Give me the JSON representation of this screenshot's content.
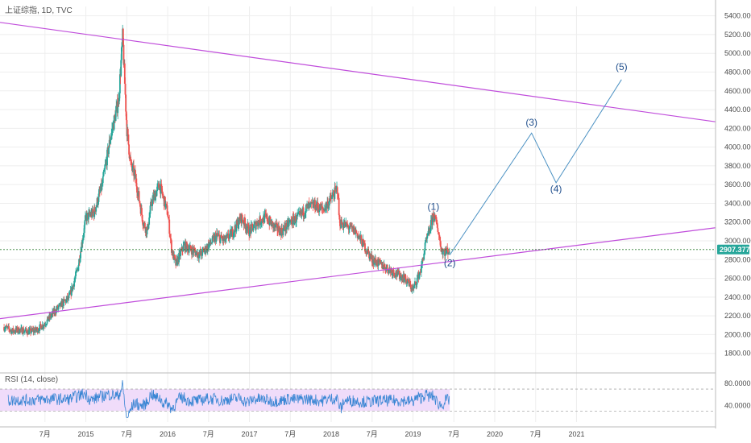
{
  "header": {
    "title": "上证综指, 1D, TVC"
  },
  "rsi": {
    "label": "RSI (14, close)",
    "y_ticks": [
      "80.0000",
      "40.0000"
    ],
    "upper_band": 70,
    "lower_band": 30,
    "ylim": [
      10,
      95
    ]
  },
  "price_label": "2907.377",
  "colors": {
    "price_line": "#2e7d32",
    "up": "#26a69a",
    "down": "#ef5350",
    "trendline": "#c04ddb",
    "projection": "#4a90c2",
    "rsi_line": "#3a86d4",
    "rsi_band": "#f0dcfa",
    "price_badge": "#26a69a"
  },
  "chart_data": {
    "type": "line",
    "title": "上证综指, 1D, TVC",
    "ylim": [
      1600,
      5500
    ],
    "y_ticks": [
      1800,
      2000,
      2200,
      2400,
      2600,
      2800,
      3000,
      3200,
      3400,
      3600,
      3800,
      4000,
      4200,
      4400,
      4600,
      4800,
      5000,
      5200,
      5400
    ],
    "x_ticks": [
      {
        "label": "7月",
        "t": 2014.5
      },
      {
        "label": "2015",
        "t": 2015.0
      },
      {
        "label": "7月",
        "t": 2015.5
      },
      {
        "label": "2016",
        "t": 2016.0
      },
      {
        "label": "7月",
        "t": 2016.5
      },
      {
        "label": "2017",
        "t": 2017.0
      },
      {
        "label": "7月",
        "t": 2017.5
      },
      {
        "label": "2018",
        "t": 2018.0
      },
      {
        "label": "7月",
        "t": 2018.5
      },
      {
        "label": "2019",
        "t": 2019.0
      },
      {
        "label": "7月",
        "t": 2019.5
      },
      {
        "label": "2020",
        "t": 2020.0
      },
      {
        "label": "7月",
        "t": 2020.5
      },
      {
        "label": "2021",
        "t": 2021.0
      }
    ],
    "series": [
      {
        "points": [
          [
            2014.0,
            2080
          ],
          [
            2014.1,
            2040
          ],
          [
            2014.2,
            2050
          ],
          [
            2014.3,
            2030
          ],
          [
            2014.4,
            2050
          ],
          [
            2014.5,
            2120
          ],
          [
            2014.6,
            2230
          ],
          [
            2014.7,
            2320
          ],
          [
            2014.8,
            2400
          ],
          [
            2014.9,
            2700
          ],
          [
            2015.0,
            3250
          ],
          [
            2015.1,
            3300
          ],
          [
            2015.2,
            3600
          ],
          [
            2015.3,
            4100
          ],
          [
            2015.4,
            4500
          ],
          [
            2015.45,
            5178
          ],
          [
            2015.5,
            4200
          ],
          [
            2015.55,
            3800
          ],
          [
            2015.6,
            3700
          ],
          [
            2015.7,
            3200
          ],
          [
            2015.75,
            3100
          ],
          [
            2015.8,
            3400
          ],
          [
            2015.9,
            3600
          ],
          [
            2016.0,
            3300
          ],
          [
            2016.05,
            2900
          ],
          [
            2016.1,
            2750
          ],
          [
            2016.2,
            2950
          ],
          [
            2016.3,
            2900
          ],
          [
            2016.4,
            2850
          ],
          [
            2016.5,
            2950
          ],
          [
            2016.6,
            3050
          ],
          [
            2016.7,
            3000
          ],
          [
            2016.8,
            3100
          ],
          [
            2016.9,
            3250
          ],
          [
            2017.0,
            3100
          ],
          [
            2017.1,
            3200
          ],
          [
            2017.2,
            3250
          ],
          [
            2017.3,
            3150
          ],
          [
            2017.4,
            3100
          ],
          [
            2017.5,
            3200
          ],
          [
            2017.6,
            3250
          ],
          [
            2017.7,
            3350
          ],
          [
            2017.8,
            3380
          ],
          [
            2017.9,
            3330
          ],
          [
            2018.0,
            3450
          ],
          [
            2018.08,
            3560
          ],
          [
            2018.1,
            3200
          ],
          [
            2018.2,
            3150
          ],
          [
            2018.3,
            3100
          ],
          [
            2018.4,
            2950
          ],
          [
            2018.5,
            2800
          ],
          [
            2018.6,
            2750
          ],
          [
            2018.7,
            2700
          ],
          [
            2018.8,
            2650
          ],
          [
            2018.9,
            2600
          ],
          [
            2019.0,
            2480
          ],
          [
            2019.1,
            2700
          ],
          [
            2019.15,
            2950
          ],
          [
            2019.2,
            3100
          ],
          [
            2019.25,
            3280
          ],
          [
            2019.3,
            3150
          ],
          [
            2019.35,
            2900
          ],
          [
            2019.4,
            2880
          ],
          [
            2019.45,
            2907
          ]
        ]
      }
    ],
    "projection": [
      [
        2019.45,
        2850
      ],
      [
        2020.45,
        4150
      ],
      [
        2020.75,
        3620
      ],
      [
        2021.55,
        4720
      ]
    ],
    "wave_labels": [
      {
        "label": "(1)",
        "t": 2019.25,
        "v": 3330
      },
      {
        "label": "(2)",
        "t": 2019.45,
        "v": 2730
      },
      {
        "label": "(3)",
        "t": 2020.45,
        "v": 4230
      },
      {
        "label": "(4)",
        "t": 2020.75,
        "v": 3520
      },
      {
        "label": "(5)",
        "t": 2021.55,
        "v": 4820
      }
    ],
    "trendlines": [
      [
        [
          2013.95,
          5330
        ],
        [
          2022.7,
          4270
        ]
      ],
      [
        [
          2013.95,
          2170
        ],
        [
          2022.7,
          3140
        ]
      ]
    ],
    "current_price": 2907.377
  }
}
